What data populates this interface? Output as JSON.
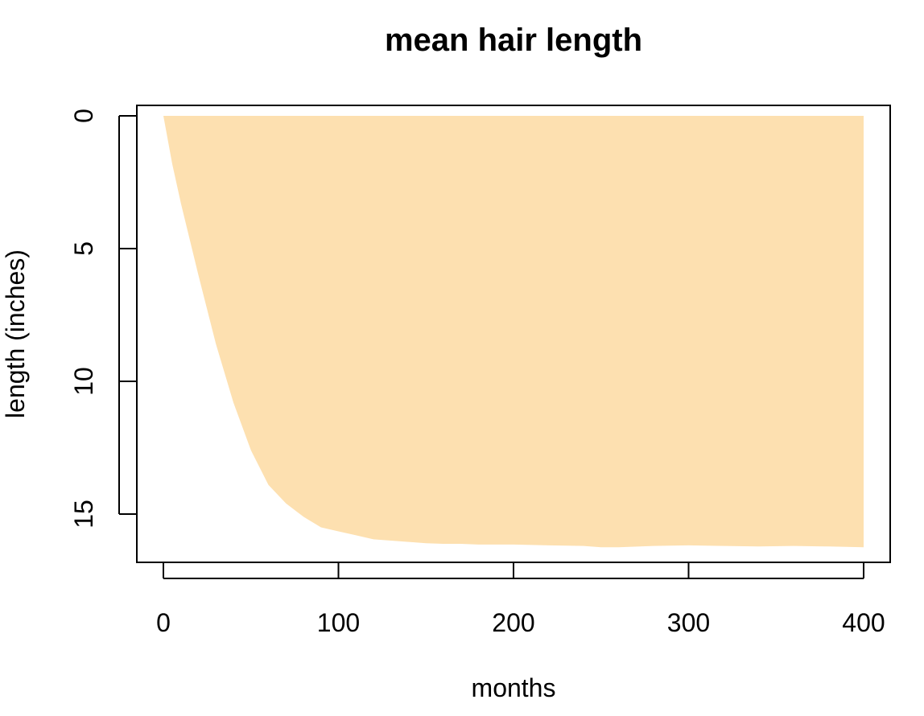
{
  "chart_data": {
    "type": "area",
    "title": "mean hair length",
    "xlabel": "months",
    "ylabel": "length (inches)",
    "xlim": [
      0,
      400
    ],
    "ylim": [
      0,
      16.8
    ],
    "y_axis_reversed": true,
    "grid": false,
    "legend": "none",
    "fill_color": "#fde0b0",
    "fill_base": 0,
    "x_ticks": [
      {
        "value": 0,
        "label": "0"
      },
      {
        "value": 100,
        "label": "100"
      },
      {
        "value": 200,
        "label": "200"
      },
      {
        "value": 300,
        "label": "300"
      },
      {
        "value": 400,
        "label": "400"
      }
    ],
    "y_ticks": [
      {
        "value": 0,
        "label": "0"
      },
      {
        "value": 5,
        "label": "5"
      },
      {
        "value": 10,
        "label": "10"
      },
      {
        "value": 15,
        "label": "15"
      }
    ],
    "series": [
      {
        "x": [
          0,
          5,
          10,
          20,
          30,
          40,
          50,
          60,
          70,
          80,
          90,
          100,
          110,
          120,
          130,
          140,
          150,
          160,
          170,
          180,
          200,
          220,
          240,
          250,
          260,
          280,
          300,
          320,
          340,
          360,
          380,
          400
        ],
        "values": [
          0,
          1.8,
          3.3,
          6.0,
          8.6,
          10.8,
          12.6,
          13.9,
          14.6,
          15.1,
          15.5,
          15.65,
          15.8,
          15.95,
          16.0,
          16.05,
          16.1,
          16.12,
          16.12,
          16.15,
          16.15,
          16.18,
          16.2,
          16.25,
          16.25,
          16.2,
          16.18,
          16.2,
          16.22,
          16.2,
          16.22,
          16.25
        ]
      }
    ]
  }
}
